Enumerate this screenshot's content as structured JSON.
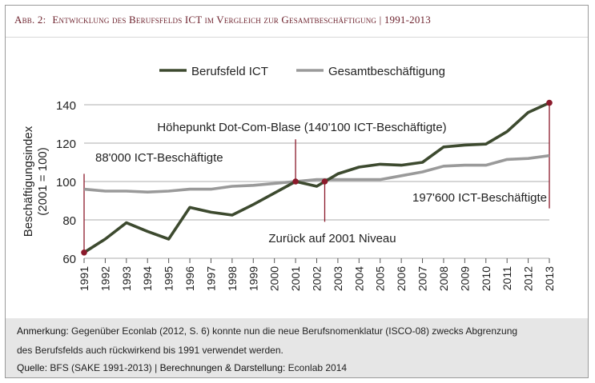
{
  "figure": {
    "label": "Abb. 2:",
    "title": "Entwicklung des Berufsfelds ICT im Vergleich zur Gesamtbeschäftigung | 1991-2013"
  },
  "colors": {
    "ict": "#3d4a2f",
    "gesamt": "#9a9a9a",
    "marker": "#8b1a2b",
    "grid": "#bdbdbd",
    "title": "#6b1f2a"
  },
  "chart_data": {
    "type": "line",
    "x": [
      "1991",
      "1992",
      "1993",
      "1994",
      "1995",
      "1996",
      "1997",
      "1998",
      "1999",
      "2000",
      "2001",
      "2002",
      "2003",
      "2004",
      "2005",
      "2006",
      "2007",
      "2008",
      "2009",
      "2010",
      "2011",
      "2012",
      "2013"
    ],
    "series": [
      {
        "name": "Berufsfeld ICT",
        "values": [
          63,
          70,
          78.5,
          74,
          70,
          86.5,
          84,
          82.5,
          88,
          94,
          100,
          97.5,
          104,
          107.5,
          109,
          108.5,
          110,
          118,
          119,
          119.5,
          126,
          136,
          141
        ]
      },
      {
        "name": "Gesamtbeschäftigung",
        "values": [
          96,
          95,
          95,
          94.5,
          95,
          96,
          96,
          97.5,
          98,
          99,
          100,
          101,
          101,
          101,
          101,
          103,
          105,
          108,
          108.5,
          108.5,
          111.5,
          112,
          113.5
        ]
      }
    ],
    "ylabel": "Beschäftigungsindex",
    "ylabel2": "(2001 = 100)",
    "ylim": [
      60,
      140
    ],
    "yticks": [
      60,
      80,
      100,
      120,
      140
    ],
    "legend_position": "top",
    "grid": true,
    "annotations": [
      {
        "text": "88'000 ICT-Beschäftigte",
        "x": "1991",
        "y": 63
      },
      {
        "text": "Höhepunkt Dot-Com-Blase (140'100 ICT-Beschäftigte)",
        "x": "2001",
        "y": 100
      },
      {
        "text": "Zurück auf 2001 Niveau",
        "x": "2002",
        "y": 100
      },
      {
        "text": "197'600 ICT-Beschäftigte",
        "x": "2013",
        "y": 141
      }
    ]
  },
  "footer": {
    "note_label": "Anmerkung:",
    "note_text": " Gegenüber Econlab (2012, S. 6) konnte nun die neue Berufsnomenklatur (ISCO-08) zwecks Abgrenzung",
    "note_text2": "des Berufsfelds auch rückwirkend bis 1991 verwendet werden.",
    "source_label": "Quelle:",
    "source_text": " BFS (SAKE 1991-2013) | ",
    "calc_label": "Berechnungen & Darstellung:",
    "calc_text": " Econlab 2014"
  }
}
